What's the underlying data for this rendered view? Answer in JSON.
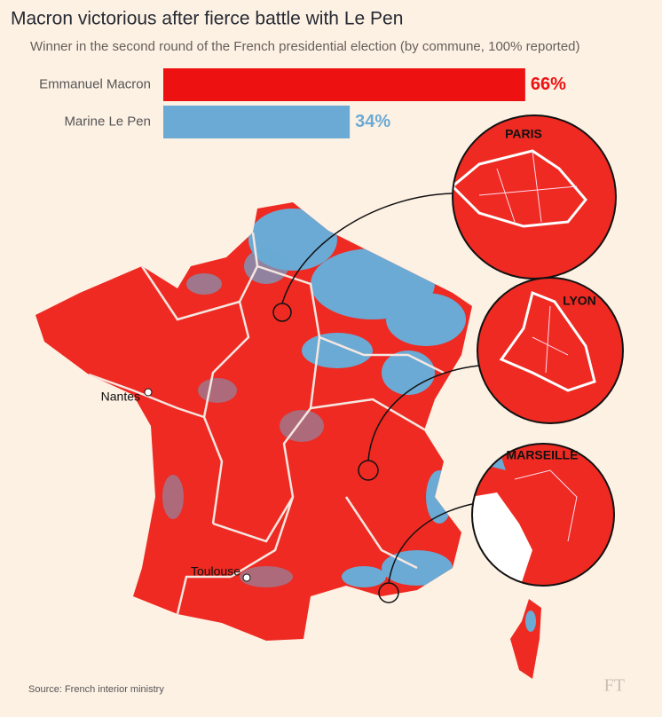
{
  "chart_data": {
    "type": "bar",
    "title": "Macron victorious after fierce battle with Le Pen",
    "subtitle": "Winner in the second round of the French presidential election (by commune, 100% reported)",
    "categories": [
      "Emmanuel Macron",
      "Marine Le Pen"
    ],
    "values": [
      66,
      34
    ],
    "value_labels": [
      "66%",
      "34%"
    ],
    "colors": [
      "#ee1111",
      "#6aaad4"
    ]
  },
  "map": {
    "cities": [
      "Nantes",
      "Toulouse"
    ],
    "insets": [
      "PARIS",
      "LYON",
      "MARSEILLE"
    ]
  },
  "source": "Source: French interior ministry",
  "logo": "FT"
}
